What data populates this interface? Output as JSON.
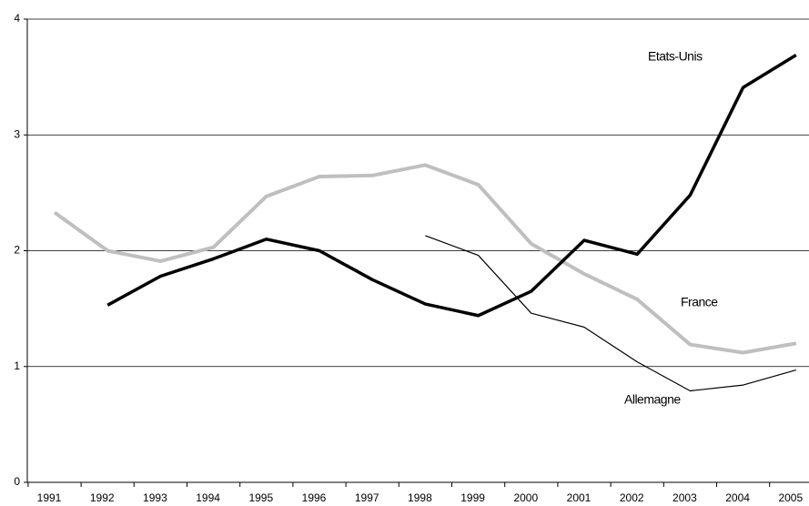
{
  "chart_data": {
    "type": "line",
    "categories": [
      "1991",
      "1992",
      "1993",
      "1994",
      "1995",
      "1996",
      "1997",
      "1998",
      "1999",
      "2000",
      "2001",
      "2002",
      "2003",
      "2004",
      "2005"
    ],
    "series": [
      {
        "name": "France",
        "color": "#bfbfbf",
        "values": [
          2.33,
          2.0,
          1.91,
          2.03,
          2.47,
          2.64,
          2.65,
          2.74,
          2.57,
          2.06,
          1.8,
          1.58,
          1.19,
          1.12,
          1.2
        ]
      },
      {
        "name": "Etats-Unis",
        "color": "#000000",
        "values": [
          null,
          1.53,
          1.78,
          1.93,
          2.1,
          2.0,
          1.75,
          1.54,
          1.44,
          1.65,
          2.09,
          1.97,
          2.48,
          3.41,
          3.69
        ]
      },
      {
        "name": "Allemagne",
        "color": "#000000",
        "values": [
          null,
          null,
          null,
          null,
          null,
          null,
          null,
          2.13,
          1.96,
          1.46,
          1.34,
          1.04,
          0.79,
          0.84,
          0.97
        ]
      }
    ],
    "ylim": [
      0,
      4
    ],
    "yticks": [
      0,
      1,
      2,
      3,
      4
    ],
    "grid": true
  }
}
